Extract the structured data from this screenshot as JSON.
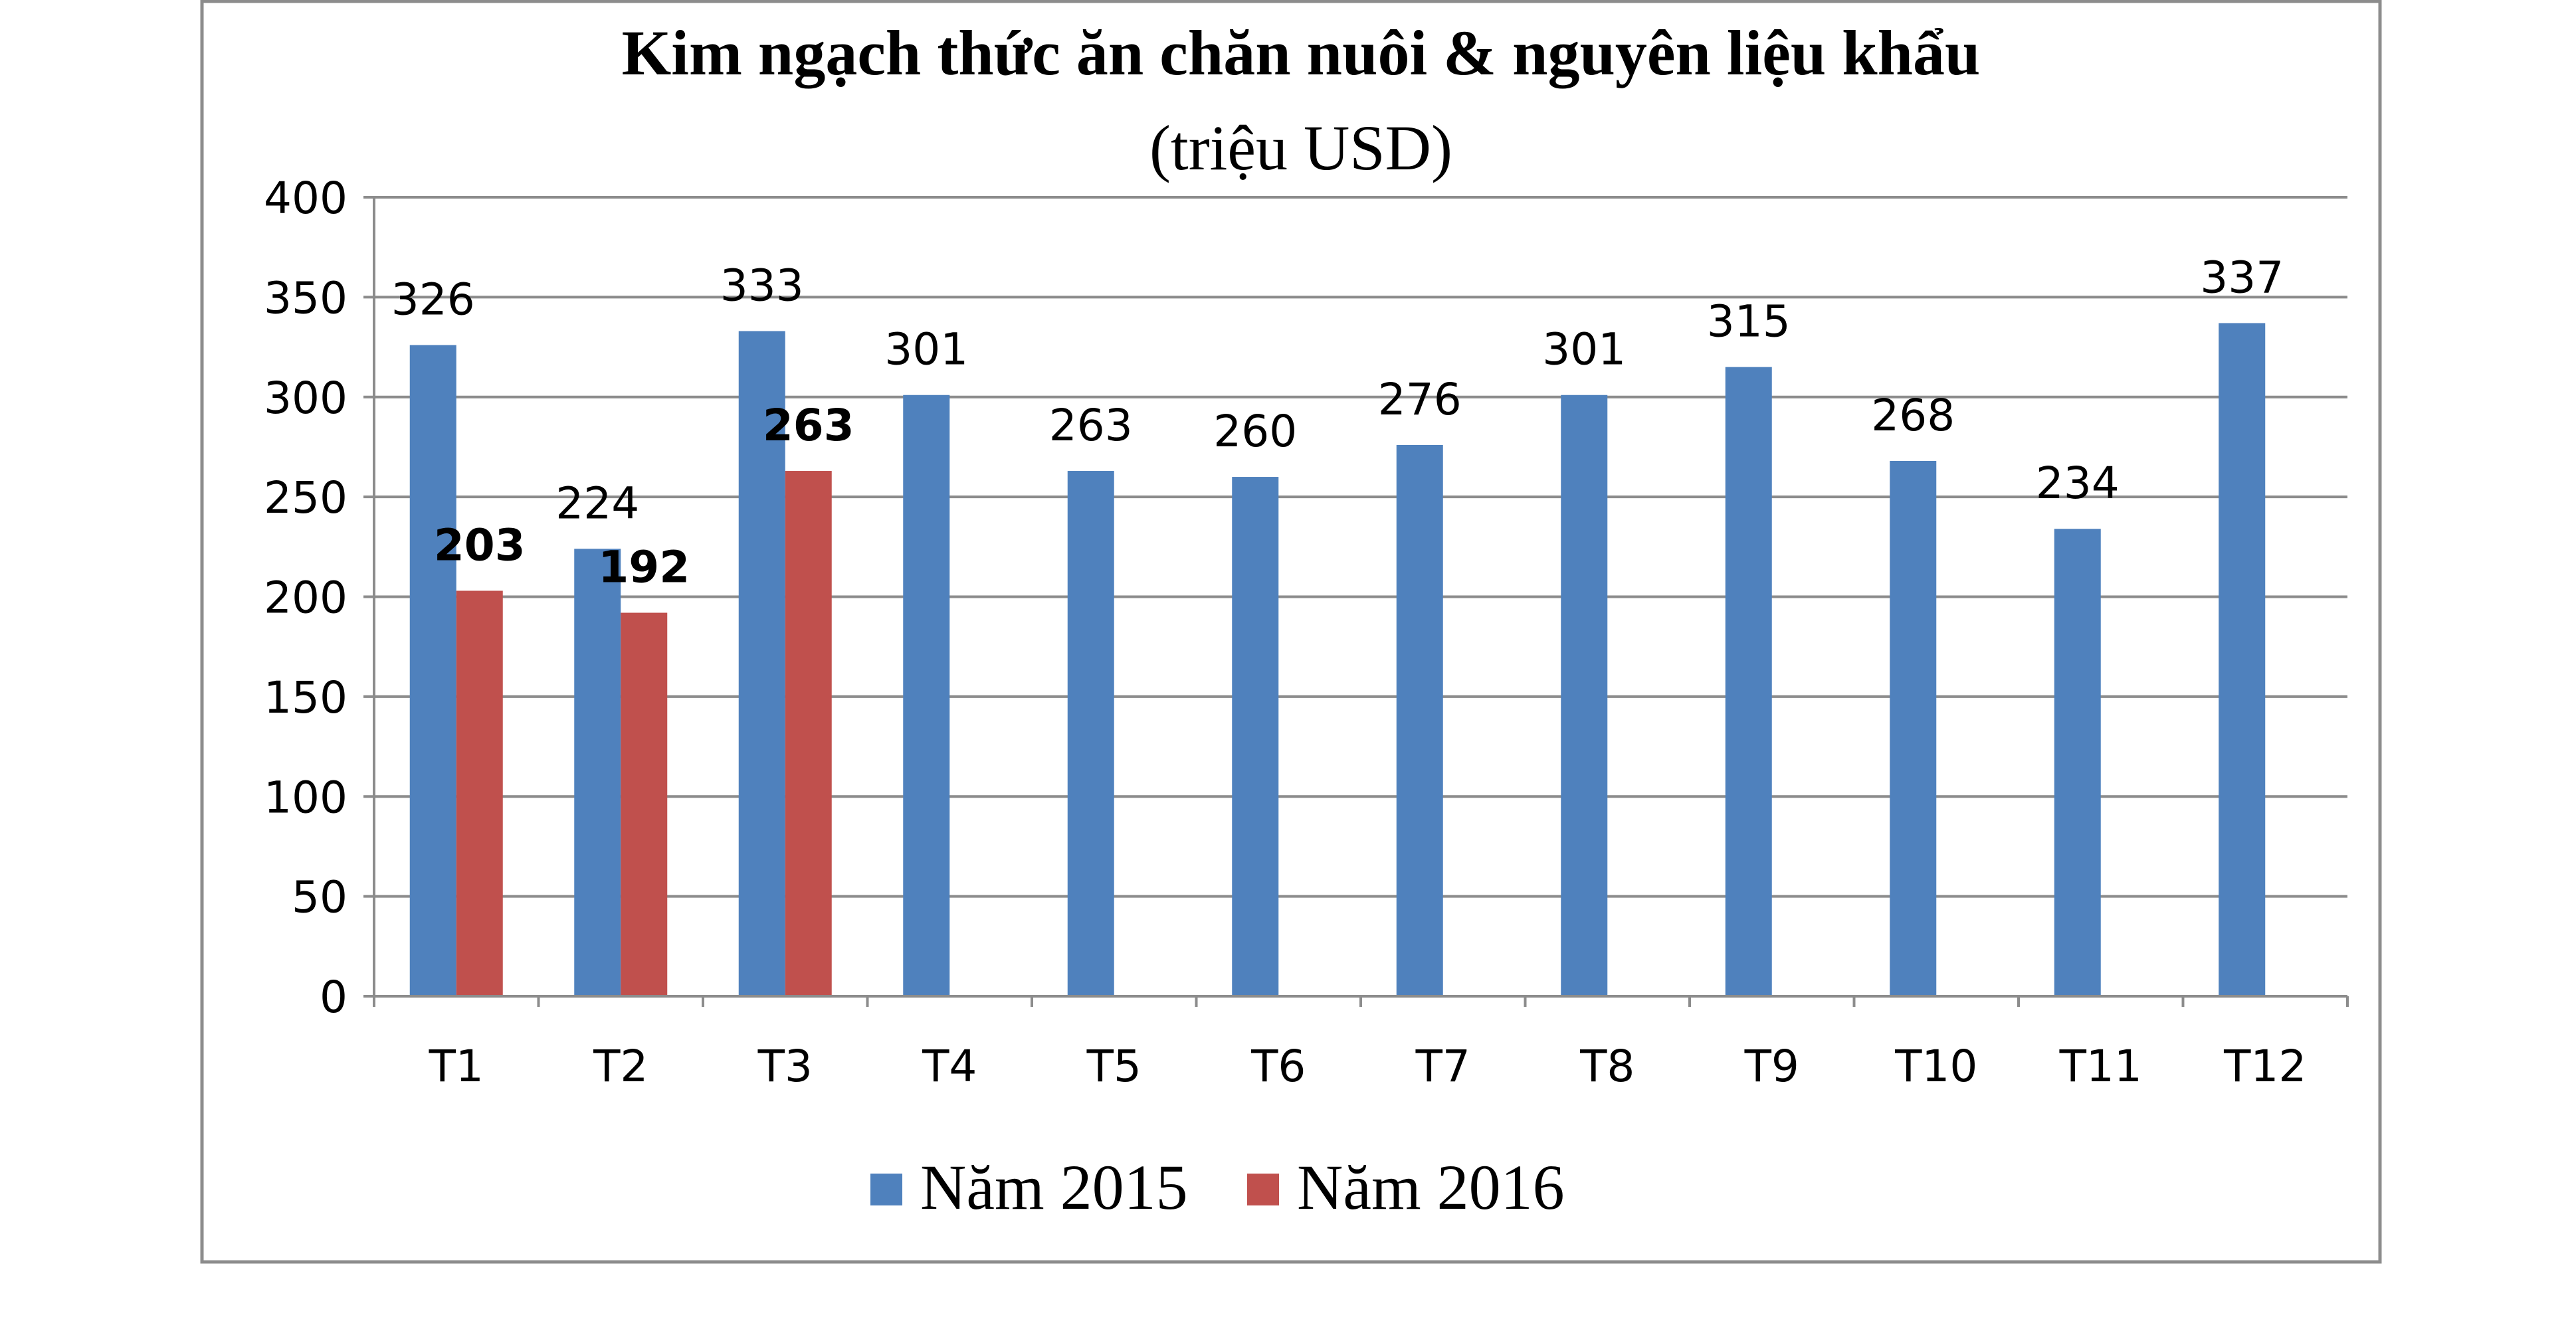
{
  "chart_data": {
    "type": "bar",
    "title": "Kim ngạch thức ăn chăn nuôi & nguyên liệu khẩu",
    "subtitle": "(triệu USD)",
    "categories": [
      "T1",
      "T2",
      "T3",
      "T4",
      "T5",
      "T6",
      "T7",
      "T8",
      "T9",
      "T10",
      "T11",
      "T12"
    ],
    "series": [
      {
        "name": "Năm 2015",
        "color": "#4F81BD",
        "values": [
          326,
          224,
          333,
          301,
          263,
          260,
          276,
          301,
          315,
          268,
          234,
          337
        ],
        "label_bold": false
      },
      {
        "name": "Năm 2016",
        "color": "#C0504D",
        "values": [
          203,
          192,
          263,
          null,
          null,
          null,
          null,
          null,
          null,
          null,
          null,
          null
        ],
        "label_bold": true
      }
    ],
    "ylim": [
      0,
      400
    ],
    "yticks": [
      "0",
      "50",
      "100",
      "150",
      "200",
      "250",
      "300",
      "350",
      "400"
    ],
    "grid": true,
    "legend": "bottom"
  }
}
